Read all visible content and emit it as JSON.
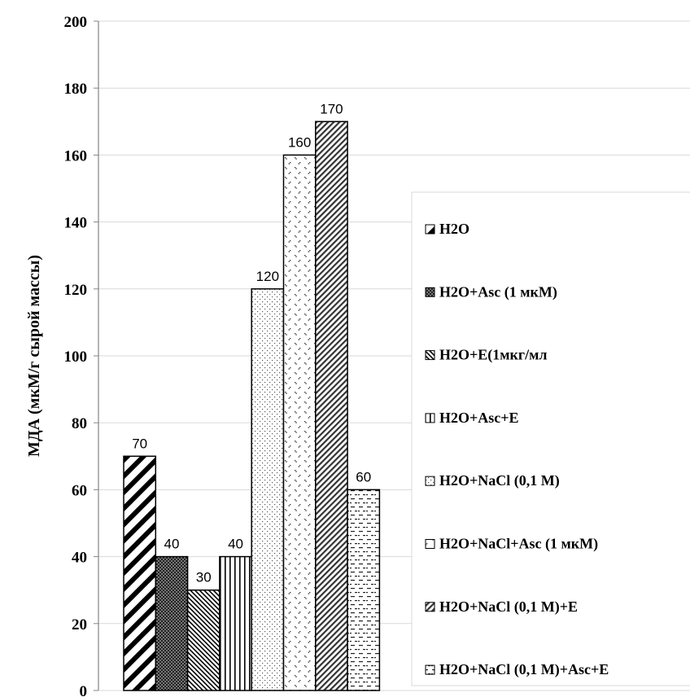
{
  "chart_data": {
    "type": "bar",
    "title": "",
    "xlabel": "",
    "ylabel": "МДА (мкМ/г  сырой массы)",
    "ylim": [
      0,
      200
    ],
    "yticks": [
      0,
      20,
      40,
      60,
      80,
      100,
      120,
      140,
      160,
      180,
      200
    ],
    "grid": true,
    "legend_position": "right",
    "series": [
      {
        "name": "H2O",
        "value": 70,
        "label": "70",
        "pattern": "diagonal-thick"
      },
      {
        "name": "H2O+Asc (1 мкМ)",
        "value": 40,
        "label": "40",
        "pattern": "checker"
      },
      {
        "name": "H2O+E(1мкг/мл",
        "value": 30,
        "label": "30",
        "pattern": "diagonal-fine"
      },
      {
        "name": "H2O+Asc+E",
        "value": 40,
        "label": "40",
        "pattern": "vertical"
      },
      {
        "name": "H2O+NaCl (0,1 М)",
        "value": 120,
        "label": "120",
        "pattern": "dots"
      },
      {
        "name": "H2O+NaCl+Asc (1 мкМ)",
        "value": 160,
        "label": "160",
        "pattern": "confetti"
      },
      {
        "name": "H2O+NaCl (0,1 М)+E",
        "value": 170,
        "label": "170",
        "pattern": "diagonal-wide"
      },
      {
        "name": "H2O+NaCl (0,1 М)+Asc+E",
        "value": 60,
        "label": "60",
        "pattern": "dashes"
      }
    ]
  }
}
